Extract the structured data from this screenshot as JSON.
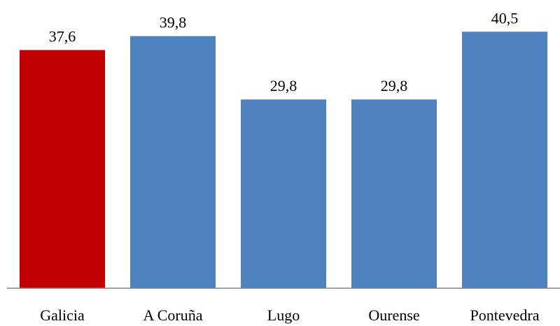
{
  "chart_data": {
    "type": "bar",
    "categories": [
      "Galicia",
      "A Coruña",
      "Lugo",
      "Ourense",
      "Pontevedra"
    ],
    "values": [
      37.6,
      39.8,
      29.8,
      29.8,
      40.5
    ],
    "value_labels": [
      "37,6",
      "39,8",
      "29,8",
      "29,8",
      "40,5"
    ],
    "colors": [
      "#C00000",
      "#4F81BD",
      "#4F81BD",
      "#4F81BD",
      "#4F81BD"
    ],
    "title": "",
    "xlabel": "",
    "ylabel": "",
    "ylim": [
      0,
      45
    ],
    "grid": false,
    "legend": "none"
  }
}
